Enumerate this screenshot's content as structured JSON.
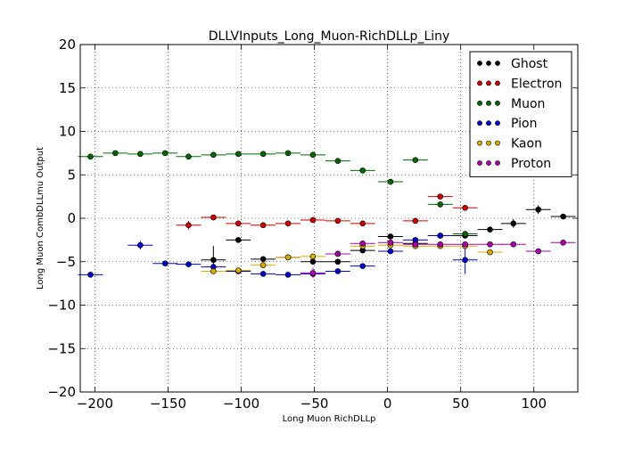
{
  "chart_data": {
    "type": "scatter",
    "title": "DLLVInputs_Long_Muon-RichDLLp_Liny",
    "xlabel": "Long Muon RichDLLp",
    "ylabel": "Long Muon CombDLLmu Output",
    "xlim": [
      -210,
      130
    ],
    "ylim": [
      -20,
      20
    ],
    "xticks": [
      -200,
      -150,
      -100,
      -50,
      0,
      50,
      100
    ],
    "yticks": [
      -20,
      -15,
      -10,
      -5,
      0,
      5,
      10,
      15,
      20
    ],
    "xtick_labels": [
      "−200",
      "−150",
      "−100",
      "−50",
      "0",
      "50",
      "100"
    ],
    "ytick_labels": [
      "−20",
      "−15",
      "−10",
      "−5",
      "0",
      "5",
      "10",
      "15",
      "20"
    ],
    "grid": true,
    "legend_position": "top-right",
    "bin_half_width": 8.5,
    "series": [
      {
        "name": "Ghost",
        "color": "#000000",
        "points": [
          [
            -119,
            -4.8,
            1.6
          ],
          [
            -102,
            -2.5,
            0.3
          ],
          [
            -85,
            -4.7,
            0.2
          ],
          [
            -68,
            -4.5,
            0.15
          ],
          [
            -51,
            -5.0,
            0.15
          ],
          [
            -34,
            -5.0,
            0.15
          ],
          [
            -17,
            -3.7,
            0.15
          ],
          [
            2,
            -2.1,
            0.15
          ],
          [
            19,
            -2.9,
            0.15
          ],
          [
            36,
            -2.0,
            0.15
          ],
          [
            53,
            -2.0,
            0.2
          ],
          [
            70,
            -1.3,
            0.3
          ],
          [
            86,
            -0.6,
            0.5
          ],
          [
            103,
            1.0,
            0.5
          ],
          [
            120,
            0.2,
            0.2
          ]
        ]
      },
      {
        "name": "Electron",
        "color": "#cc0000",
        "points": [
          [
            -136,
            -0.8,
            0.5
          ],
          [
            -119,
            0.1,
            0.3
          ],
          [
            -102,
            -0.6,
            0.2
          ],
          [
            -85,
            -0.8,
            0.2
          ],
          [
            -68,
            -0.6,
            0.2
          ],
          [
            -51,
            -0.2,
            0.2
          ],
          [
            -34,
            -0.3,
            0.2
          ],
          [
            -17,
            -0.6,
            0.2
          ],
          [
            19,
            -0.3,
            0.2
          ],
          [
            36,
            2.5,
            0.3
          ],
          [
            53,
            1.2,
            0.3
          ]
        ]
      },
      {
        "name": "Muon",
        "color": "#006600",
        "points": [
          [
            -203,
            7.1,
            0.1
          ],
          [
            -186,
            7.5,
            0.1
          ],
          [
            -169,
            7.4,
            0.1
          ],
          [
            -152,
            7.5,
            0.1
          ],
          [
            -136,
            7.1,
            0.1
          ],
          [
            -119,
            7.3,
            0.1
          ],
          [
            -102,
            7.4,
            0.1
          ],
          [
            -85,
            7.4,
            0.1
          ],
          [
            -68,
            7.5,
            0.1
          ],
          [
            -51,
            7.3,
            0.1
          ],
          [
            -34,
            6.6,
            0.1
          ],
          [
            -17,
            5.5,
            0.1
          ],
          [
            2,
            4.2,
            0.1
          ],
          [
            19,
            6.7,
            0.1
          ],
          [
            36,
            1.6,
            0.15
          ],
          [
            53,
            -1.8,
            0.3
          ]
        ]
      },
      {
        "name": "Pion",
        "color": "#0000cc",
        "points": [
          [
            -203,
            -6.5,
            0.1
          ],
          [
            -169,
            -3.1,
            0.5
          ],
          [
            -152,
            -5.2,
            0.1
          ],
          [
            -136,
            -5.3,
            0.1
          ],
          [
            -119,
            -5.6,
            0.3
          ],
          [
            -102,
            -6.1,
            0.2
          ],
          [
            -85,
            -6.4,
            0.1
          ],
          [
            -68,
            -6.5,
            0.1
          ],
          [
            -51,
            -6.4,
            0.2
          ],
          [
            -34,
            -6.1,
            0.2
          ],
          [
            -17,
            -5.5,
            0.1
          ],
          [
            2,
            -3.8,
            0.2
          ],
          [
            19,
            -2.5,
            0.2
          ],
          [
            36,
            -2.0,
            0.2
          ],
          [
            53,
            -4.8,
            1.6
          ]
        ]
      },
      {
        "name": "Kaon",
        "color": "#ddaa00",
        "points": [
          [
            -119,
            -6.1,
            0.3
          ],
          [
            -102,
            -6.0,
            0.2
          ],
          [
            -85,
            -5.4,
            0.2
          ],
          [
            -68,
            -4.5,
            0.2
          ],
          [
            -51,
            -4.4,
            0.2
          ],
          [
            -34,
            -4.1,
            0.2
          ],
          [
            -17,
            -3.2,
            0.2
          ],
          [
            2,
            -3.1,
            0.15
          ],
          [
            19,
            -3.2,
            0.15
          ],
          [
            36,
            -3.2,
            0.15
          ],
          [
            53,
            -3.2,
            0.15
          ],
          [
            70,
            -3.9,
            0.2
          ]
        ]
      },
      {
        "name": "Proton",
        "color": "#aa00aa",
        "points": [
          [
            -51,
            -6.3,
            0.6
          ],
          [
            -34,
            -4.1,
            0.2
          ],
          [
            -17,
            -2.9,
            0.2
          ],
          [
            2,
            -2.8,
            0.15
          ],
          [
            19,
            -3.0,
            0.15
          ],
          [
            36,
            -3.0,
            0.15
          ],
          [
            53,
            -3.0,
            0.15
          ],
          [
            70,
            -3.0,
            0.15
          ],
          [
            86,
            -3.0,
            0.15
          ],
          [
            103,
            -3.8,
            0.2
          ],
          [
            120,
            -2.8,
            0.15
          ]
        ]
      }
    ]
  }
}
